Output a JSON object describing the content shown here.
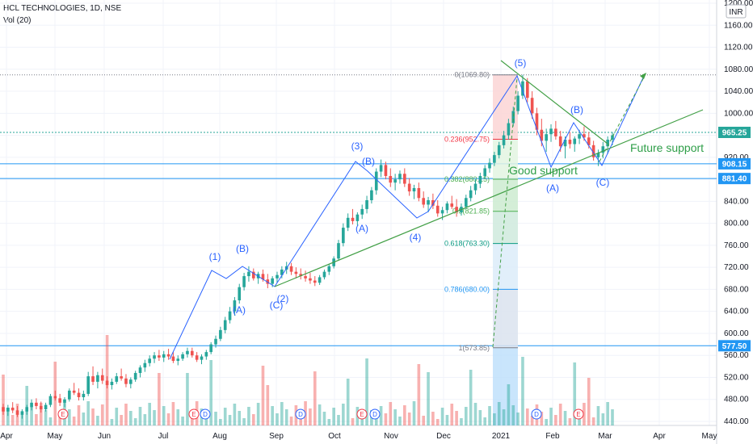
{
  "header": {
    "symbol_line": "HCL TECHNOLOGIES, 1D, NSE",
    "volume_label": "Vol (20)"
  },
  "currency_badge": "INR",
  "colors": {
    "up": "#26a69a",
    "down": "#ef5350",
    "hline": "#2196f3",
    "trend": "#43a047",
    "wave": "#2962ff",
    "price_tag": "#2196f3"
  },
  "chart_data": {
    "type": "candlestick",
    "y_range": [
      440,
      1200
    ],
    "y_ticks": [
      "440.00",
      "480.00",
      "520.00",
      "560.00",
      "600.00",
      "640.00",
      "680.00",
      "720.00",
      "760.00",
      "800.00",
      "840.00",
      "880.00",
      "920.00",
      "960.00",
      "1000.00",
      "1040.00",
      "1080.00",
      "1120.00",
      "1160.00",
      "1200.00"
    ],
    "x_ticks": [
      "Apr",
      "May",
      "Jun",
      "Jul",
      "Aug",
      "Sep",
      "Oct",
      "Nov",
      "Dec",
      "2021",
      "Feb",
      "Mar",
      "Apr",
      "May"
    ],
    "price_tags": [
      {
        "value": 965.25,
        "label": "965.25",
        "style": "price"
      },
      {
        "value": 908.15,
        "label": "908.15",
        "style": "level"
      },
      {
        "value": 881.4,
        "label": "881.40",
        "style": "level"
      },
      {
        "value": 577.5,
        "label": "577.50",
        "style": "level"
      }
    ],
    "fib_levels": [
      {
        "ratio": "0",
        "price": 1069.8,
        "label": "0(1069.80)",
        "color": "#787b86"
      },
      {
        "ratio": "0.236",
        "price": 952.75,
        "label": "0.236(952.75)",
        "color": "#f23645"
      },
      {
        "ratio": "0.382",
        "price": 880.15,
        "label": "0.382(880.15)",
        "color": "#4caf50"
      },
      {
        "ratio": "0.5",
        "price": 821.85,
        "label": "0.5(821.85)",
        "color": "#4caf50"
      },
      {
        "ratio": "0.618",
        "price": 763.3,
        "label": "0.618(763.30)",
        "color": "#089981"
      },
      {
        "ratio": "0.786",
        "price": 680.0,
        "label": "0.786(680.00)",
        "color": "#2196f3"
      },
      {
        "ratio": "1",
        "price": 573.85,
        "label": "1(573.85)",
        "color": "#787b86"
      }
    ],
    "wave_labels": [
      "(1)",
      "(B)",
      "(A)",
      "(C)",
      "(2)",
      "(3)",
      "(B)",
      "(A)",
      "(4)",
      "(5)",
      "(B)",
      "(A)",
      "(C)"
    ],
    "annotations": [
      "Future support",
      "Good support"
    ],
    "earnings_markers": [
      "E",
      "E",
      "D",
      "D",
      "E",
      "D",
      "D",
      "E"
    ],
    "candles": [
      [
        466,
        472,
        452,
        458
      ],
      [
        458,
        470,
        450,
        465
      ],
      [
        465,
        475,
        455,
        460
      ],
      [
        460,
        468,
        448,
        452
      ],
      [
        452,
        462,
        445,
        458
      ],
      [
        458,
        470,
        452,
        466
      ],
      [
        466,
        480,
        460,
        474
      ],
      [
        474,
        482,
        462,
        468
      ],
      [
        468,
        476,
        456,
        462
      ],
      [
        462,
        474,
        458,
        470
      ],
      [
        470,
        490,
        466,
        486
      ],
      [
        486,
        496,
        478,
        482
      ],
      [
        482,
        490,
        468,
        474
      ],
      [
        474,
        484,
        466,
        480
      ],
      [
        480,
        500,
        476,
        496
      ],
      [
        496,
        510,
        488,
        492
      ],
      [
        492,
        500,
        478,
        484
      ],
      [
        484,
        496,
        478,
        490
      ],
      [
        490,
        530,
        486,
        522
      ],
      [
        522,
        540,
        506,
        512
      ],
      [
        512,
        530,
        500,
        524
      ],
      [
        524,
        536,
        508,
        514
      ],
      [
        514,
        522,
        500,
        506
      ],
      [
        506,
        518,
        498,
        512
      ],
      [
        512,
        528,
        508,
        522
      ],
      [
        522,
        536,
        514,
        518
      ],
      [
        518,
        526,
        502,
        508
      ],
      [
        508,
        520,
        500,
        516
      ],
      [
        516,
        532,
        512,
        528
      ],
      [
        528,
        542,
        520,
        538
      ],
      [
        538,
        552,
        530,
        546
      ],
      [
        546,
        560,
        540,
        554
      ],
      [
        554,
        566,
        546,
        560
      ],
      [
        560,
        570,
        550,
        556
      ],
      [
        556,
        568,
        548,
        562
      ],
      [
        562,
        572,
        552,
        558
      ],
      [
        558,
        566,
        546,
        550
      ],
      [
        550,
        560,
        542,
        554
      ],
      [
        554,
        566,
        550,
        562
      ],
      [
        562,
        574,
        556,
        568
      ],
      [
        568,
        574,
        556,
        560
      ],
      [
        560,
        566,
        548,
        552
      ],
      [
        552,
        562,
        544,
        558
      ],
      [
        558,
        570,
        552,
        566
      ],
      [
        566,
        584,
        562,
        580
      ],
      [
        580,
        596,
        574,
        590
      ],
      [
        590,
        612,
        586,
        606
      ],
      [
        606,
        630,
        600,
        624
      ],
      [
        624,
        648,
        618,
        640
      ],
      [
        640,
        666,
        632,
        660
      ],
      [
        660,
        690,
        654,
        684
      ],
      [
        684,
        710,
        678,
        704
      ],
      [
        704,
        722,
        694,
        712
      ],
      [
        712,
        718,
        696,
        700
      ],
      [
        700,
        712,
        690,
        708
      ],
      [
        708,
        716,
        694,
        698
      ],
      [
        698,
        708,
        682,
        690
      ],
      [
        690,
        704,
        684,
        700
      ],
      [
        700,
        712,
        692,
        706
      ],
      [
        706,
        722,
        700,
        716
      ],
      [
        716,
        730,
        708,
        722
      ],
      [
        722,
        728,
        706,
        712
      ],
      [
        712,
        720,
        700,
        708
      ],
      [
        708,
        718,
        698,
        704
      ],
      [
        704,
        714,
        694,
        700
      ],
      [
        700,
        710,
        690,
        696
      ],
      [
        696,
        704,
        686,
        692
      ],
      [
        692,
        706,
        688,
        702
      ],
      [
        702,
        716,
        698,
        712
      ],
      [
        712,
        726,
        706,
        722
      ],
      [
        722,
        740,
        718,
        736
      ],
      [
        736,
        770,
        732,
        764
      ],
      [
        764,
        800,
        758,
        792
      ],
      [
        792,
        818,
        786,
        810
      ],
      [
        810,
        826,
        798,
        804
      ],
      [
        804,
        820,
        796,
        816
      ],
      [
        816,
        834,
        808,
        826
      ],
      [
        826,
        850,
        818,
        842
      ],
      [
        842,
        866,
        836,
        860
      ],
      [
        860,
        900,
        852,
        894
      ],
      [
        894,
        916,
        884,
        906
      ],
      [
        906,
        912,
        880,
        886
      ],
      [
        886,
        900,
        866,
        874
      ],
      [
        874,
        890,
        860,
        880
      ],
      [
        880,
        896,
        872,
        890
      ],
      [
        890,
        900,
        866,
        872
      ],
      [
        872,
        882,
        850,
        858
      ],
      [
        858,
        870,
        844,
        864
      ],
      [
        864,
        874,
        840,
        846
      ],
      [
        846,
        858,
        828,
        834
      ],
      [
        834,
        848,
        820,
        842
      ],
      [
        842,
        854,
        826,
        832
      ],
      [
        832,
        842,
        812,
        818
      ],
      [
        818,
        830,
        806,
        824
      ],
      [
        824,
        840,
        818,
        836
      ],
      [
        836,
        850,
        826,
        830
      ],
      [
        830,
        844,
        812,
        820
      ],
      [
        820,
        836,
        814,
        830
      ],
      [
        830,
        852,
        826,
        846
      ],
      [
        846,
        868,
        840,
        860
      ],
      [
        860,
        880,
        852,
        872
      ],
      [
        872,
        892,
        864,
        886
      ],
      [
        886,
        906,
        880,
        900
      ],
      [
        900,
        918,
        892,
        910
      ],
      [
        910,
        930,
        904,
        924
      ],
      [
        924,
        948,
        918,
        942
      ],
      [
        942,
        968,
        936,
        960
      ],
      [
        960,
        990,
        952,
        982
      ],
      [
        982,
        1012,
        976,
        1004
      ],
      [
        1004,
        1040,
        998,
        1032
      ],
      [
        1032,
        1070,
        1026,
        1058
      ],
      [
        1058,
        1064,
        1020,
        1028
      ],
      [
        1028,
        1040,
        990,
        1000
      ],
      [
        1000,
        1010,
        960,
        970
      ],
      [
        970,
        990,
        940,
        950
      ],
      [
        950,
        972,
        930,
        962
      ],
      [
        962,
        980,
        948,
        972
      ],
      [
        972,
        986,
        952,
        958
      ],
      [
        958,
        968,
        930,
        940
      ],
      [
        940,
        958,
        918,
        952
      ],
      [
        952,
        966,
        936,
        944
      ],
      [
        944,
        958,
        930,
        954
      ],
      [
        954,
        970,
        944,
        962
      ],
      [
        962,
        976,
        950,
        956
      ],
      [
        956,
        966,
        936,
        942
      ],
      [
        942,
        950,
        914,
        920
      ],
      [
        920,
        934,
        904,
        928
      ],
      [
        928,
        948,
        918,
        940
      ],
      [
        940,
        958,
        926,
        952
      ],
      [
        952,
        966,
        942,
        960
      ]
    ]
  }
}
